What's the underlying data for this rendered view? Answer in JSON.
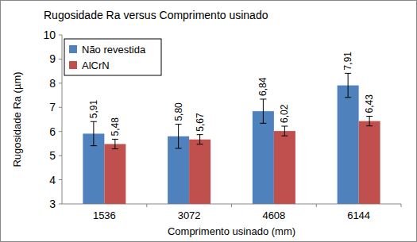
{
  "chart_data": {
    "type": "bar",
    "title": "Rugosidade Ra versus Comprimento usinado",
    "x_label": "Comprimento usinado (mm)",
    "y_label": "Rugosidade Ra (µm)",
    "categories": [
      "1536",
      "3072",
      "4608",
      "6144"
    ],
    "series": [
      {
        "name": "Não revestida",
        "color": "#4f81bd",
        "values": [
          5.91,
          5.8,
          6.84,
          7.91
        ],
        "value_labels": [
          "5,91",
          "5,80",
          "6,84",
          "7,91"
        ],
        "errors": [
          0.5,
          0.5,
          0.5,
          0.5
        ]
      },
      {
        "name": "AlCrN",
        "color": "#c0504d",
        "values": [
          5.48,
          5.67,
          6.02,
          6.43
        ],
        "value_labels": [
          "5,48",
          "5,67",
          "6,02",
          "6,43"
        ],
        "errors": [
          0.2,
          0.2,
          0.2,
          0.2
        ]
      }
    ],
    "ylim": [
      3,
      10
    ],
    "yticks": [
      3,
      4,
      5,
      6,
      7,
      8,
      9,
      10
    ],
    "grid": false,
    "legend": "top-left",
    "data_labels": true
  }
}
